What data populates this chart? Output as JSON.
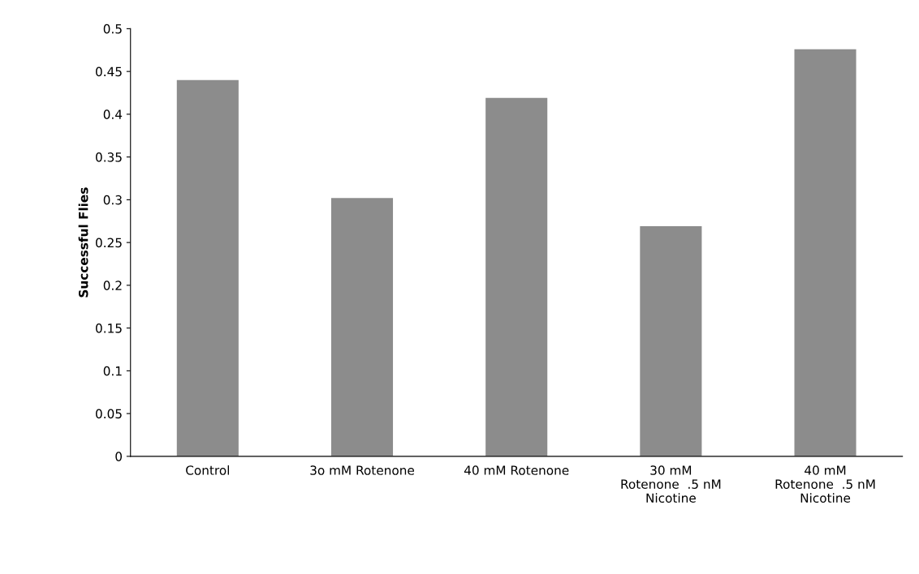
{
  "chart_data": {
    "type": "bar",
    "ylabel": "Successful Flies",
    "categories": [
      "Control",
      "3o mM Rotenone",
      "40 mM Rotenone",
      "30 mM\nRotenone  .5 nM\nNicotine",
      "40 mM\nRotenone  .5 nM\nNicotine"
    ],
    "values": [
      0.44,
      0.302,
      0.419,
      0.269,
      0.476
    ],
    "color": "#8c8c8c",
    "ylim": [
      0,
      0.5
    ],
    "yticks": [
      0,
      0.05,
      0.1,
      0.15,
      0.2,
      0.25,
      0.3,
      0.35,
      0.4,
      0.45,
      0.5
    ],
    "grid": false,
    "legend": false
  }
}
